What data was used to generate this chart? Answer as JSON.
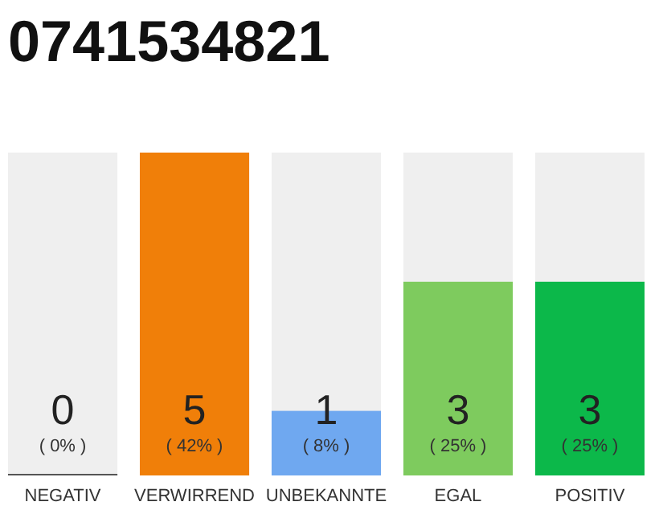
{
  "chart_data": {
    "type": "bar",
    "title": "0741534821",
    "categories": [
      "NEGATIV",
      "VERWIRREND",
      "UNBEKANNTE",
      "EGAL",
      "POSITIV"
    ],
    "values": [
      0,
      5,
      1,
      3,
      3
    ],
    "colors": [
      "#555555",
      "#f07f09",
      "#6fa8f0",
      "#7ecb5e",
      "#0cb84a"
    ],
    "data_labels": true,
    "annotations": [
      "( 0% )",
      "( 42% )",
      "( 8% )",
      "( 25% )",
      "( 25% )"
    ]
  }
}
